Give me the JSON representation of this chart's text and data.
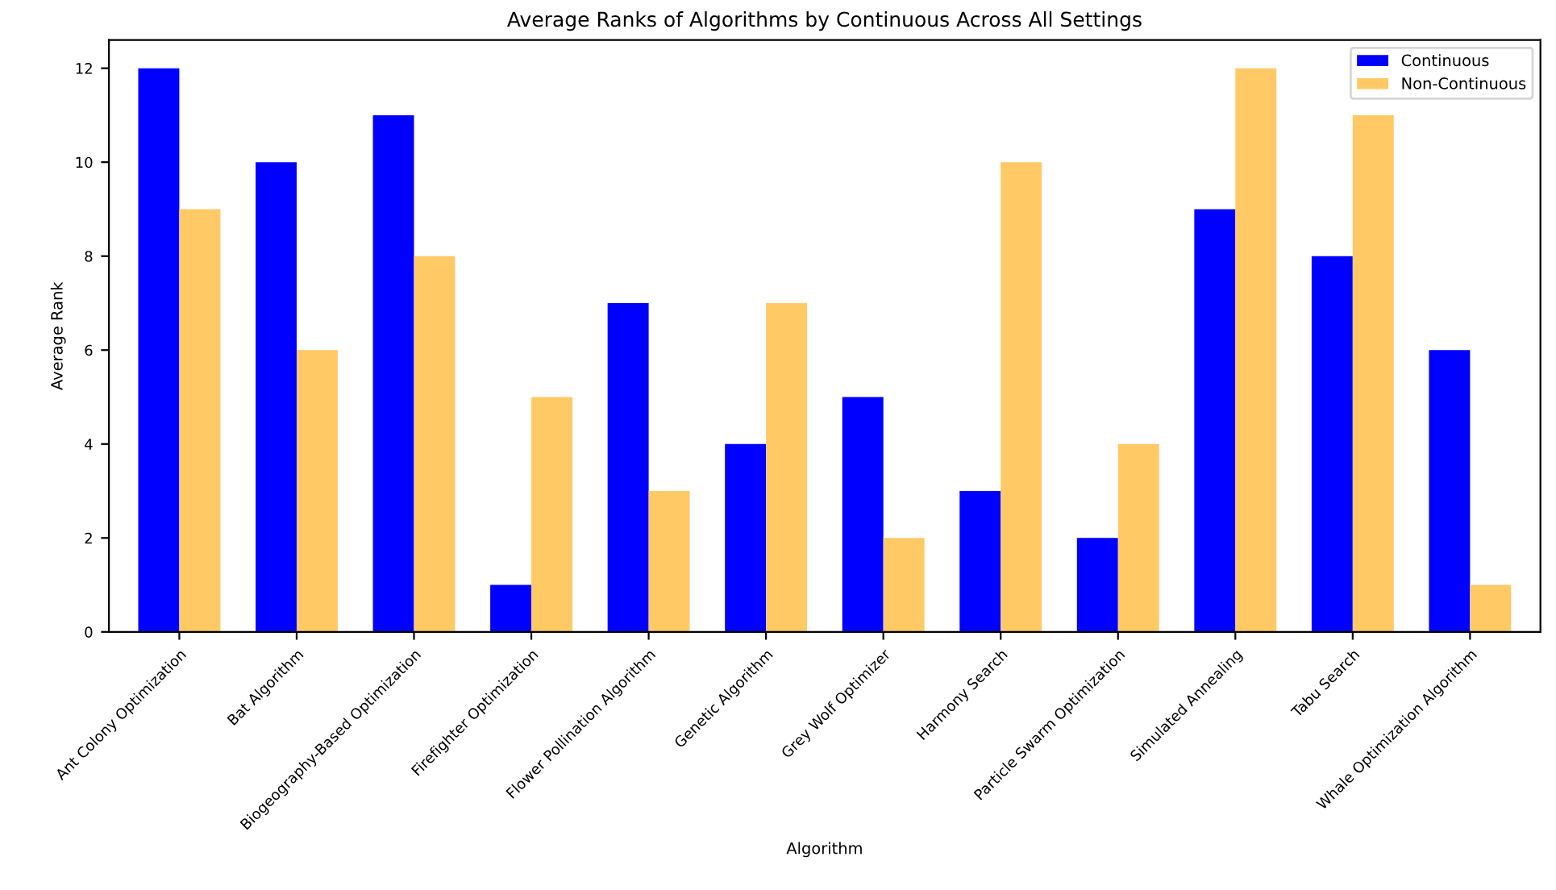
{
  "chart_data": {
    "type": "bar",
    "title": "Average Ranks of Algorithms by Continuous Across All Settings",
    "xlabel": "Algorithm",
    "ylabel": "Average Rank",
    "categories": [
      "Ant Colony Optimization",
      "Bat Algorithm",
      "Biogeography-Based Optimization",
      "Firefighter Optimization",
      "Flower Pollination Algorithm",
      "Genetic Algorithm",
      "Grey Wolf Optimizer",
      "Harmony Search",
      "Particle Swarm Optimization",
      "Simulated Annealing",
      "Tabu Search",
      "Whale Optimization Algorithm"
    ],
    "series": [
      {
        "name": "Continuous",
        "color": "#0000ff",
        "values": [
          12,
          10,
          11,
          1,
          7,
          4,
          5,
          3,
          2,
          9,
          8,
          6
        ]
      },
      {
        "name": "Non-Continuous",
        "color": "#ffc966",
        "values": [
          9,
          6,
          8,
          5,
          3,
          7,
          2,
          10,
          4,
          12,
          11,
          1
        ]
      }
    ],
    "ylim": [
      0,
      12.6
    ],
    "yticks": [
      0,
      2,
      4,
      6,
      8,
      10,
      12
    ],
    "legend": "top right",
    "grid": false
  }
}
